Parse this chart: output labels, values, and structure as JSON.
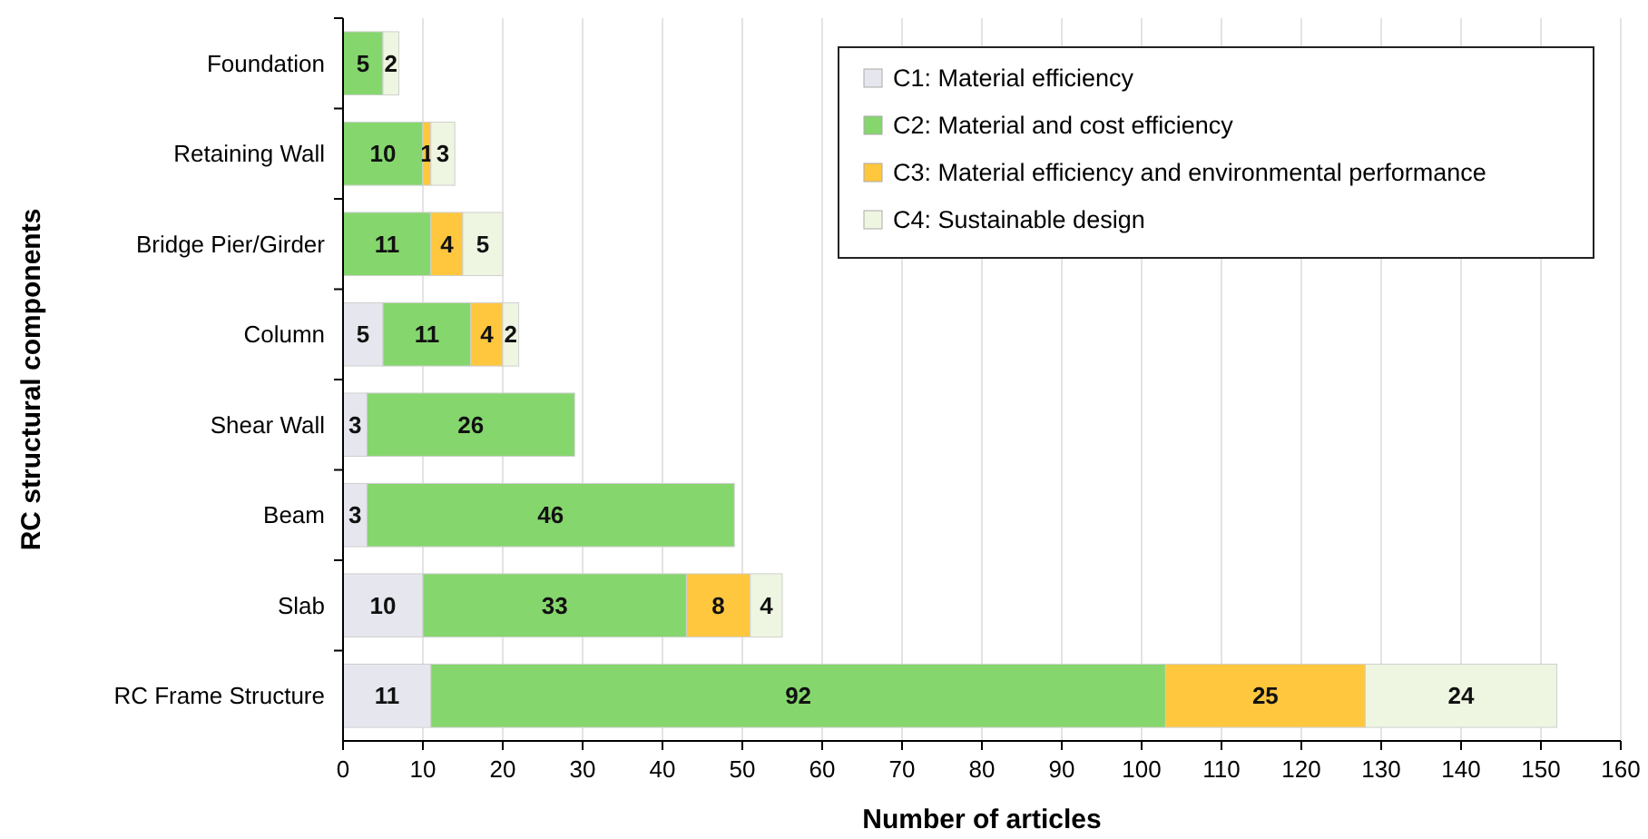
{
  "chart_data": {
    "type": "bar",
    "orientation": "horizontal",
    "stacked": true,
    "xlabel": "Number of articles",
    "ylabel": "RC structural components",
    "categories": [
      "Foundation",
      "Retaining Wall",
      "Bridge Pier/Girder",
      "Column",
      "Shear Wall",
      "Beam",
      "Slab",
      "RC Frame Structure"
    ],
    "series": [
      {
        "name": "C1: Material efficiency",
        "color": "#e6e7ee",
        "values": [
          null,
          null,
          null,
          5,
          3,
          3,
          10,
          11
        ]
      },
      {
        "name": "C2: Material and cost efficiency",
        "color": "#86d66e",
        "values": [
          5,
          10,
          11,
          11,
          26,
          46,
          33,
          92
        ]
      },
      {
        "name": "C3: Material efficiency and environmental performance",
        "color": "#ffc73d",
        "values": [
          null,
          1,
          4,
          4,
          null,
          null,
          8,
          25
        ]
      },
      {
        "name": "C4: Sustainable design",
        "color": "#eef6e2",
        "values": [
          2,
          3,
          5,
          2,
          null,
          null,
          4,
          24
        ]
      }
    ],
    "xlim": [
      0,
      160
    ],
    "xticks": [
      0,
      10,
      20,
      30,
      40,
      50,
      60,
      70,
      80,
      90,
      100,
      110,
      120,
      130,
      140,
      150,
      160
    ],
    "grid": "x",
    "legend": "top right",
    "data_labels": true
  }
}
